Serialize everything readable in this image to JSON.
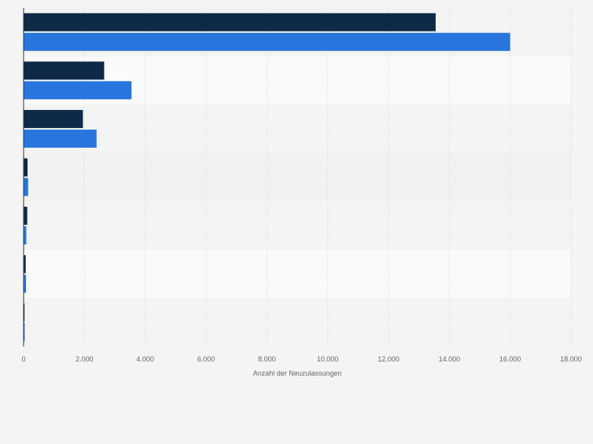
{
  "chart_data": {
    "type": "bar",
    "orientation": "horizontal",
    "title": "",
    "categories": [
      "",
      "",
      "",
      "",
      "",
      "",
      ""
    ],
    "series": [
      {
        "values": [
          13550,
          2650,
          1950,
          130,
          120,
          70,
          30
        ],
        "color": "#0e2a47"
      },
      {
        "values": [
          16000,
          3550,
          2400,
          150,
          90,
          80,
          35
        ],
        "color": "#2876dd"
      }
    ],
    "xlabel": "Anzahl der Neuzulassungen",
    "xlim": [
      0,
      18000
    ],
    "xticks": [
      {
        "value": 0,
        "label": "0"
      },
      {
        "value": 2000,
        "label": "2.000"
      },
      {
        "value": 4000,
        "label": "4.000"
      },
      {
        "value": 6000,
        "label": "6.000"
      },
      {
        "value": 8000,
        "label": "8.000"
      },
      {
        "value": 10000,
        "label": "10.000"
      },
      {
        "value": 12000,
        "label": "12.000"
      },
      {
        "value": 14000,
        "label": "14.000"
      },
      {
        "value": 16000,
        "label": "16.000"
      },
      {
        "value": 18000,
        "label": "18.000"
      }
    ],
    "grid": true,
    "legend": "none",
    "colors": {
      "background": "#f4f4f4",
      "band_light": "#fafafa",
      "band_dark": "#f2f2f2",
      "grid": "#d9d9d9",
      "axis": "#333333",
      "tick_text": "#666666"
    }
  }
}
